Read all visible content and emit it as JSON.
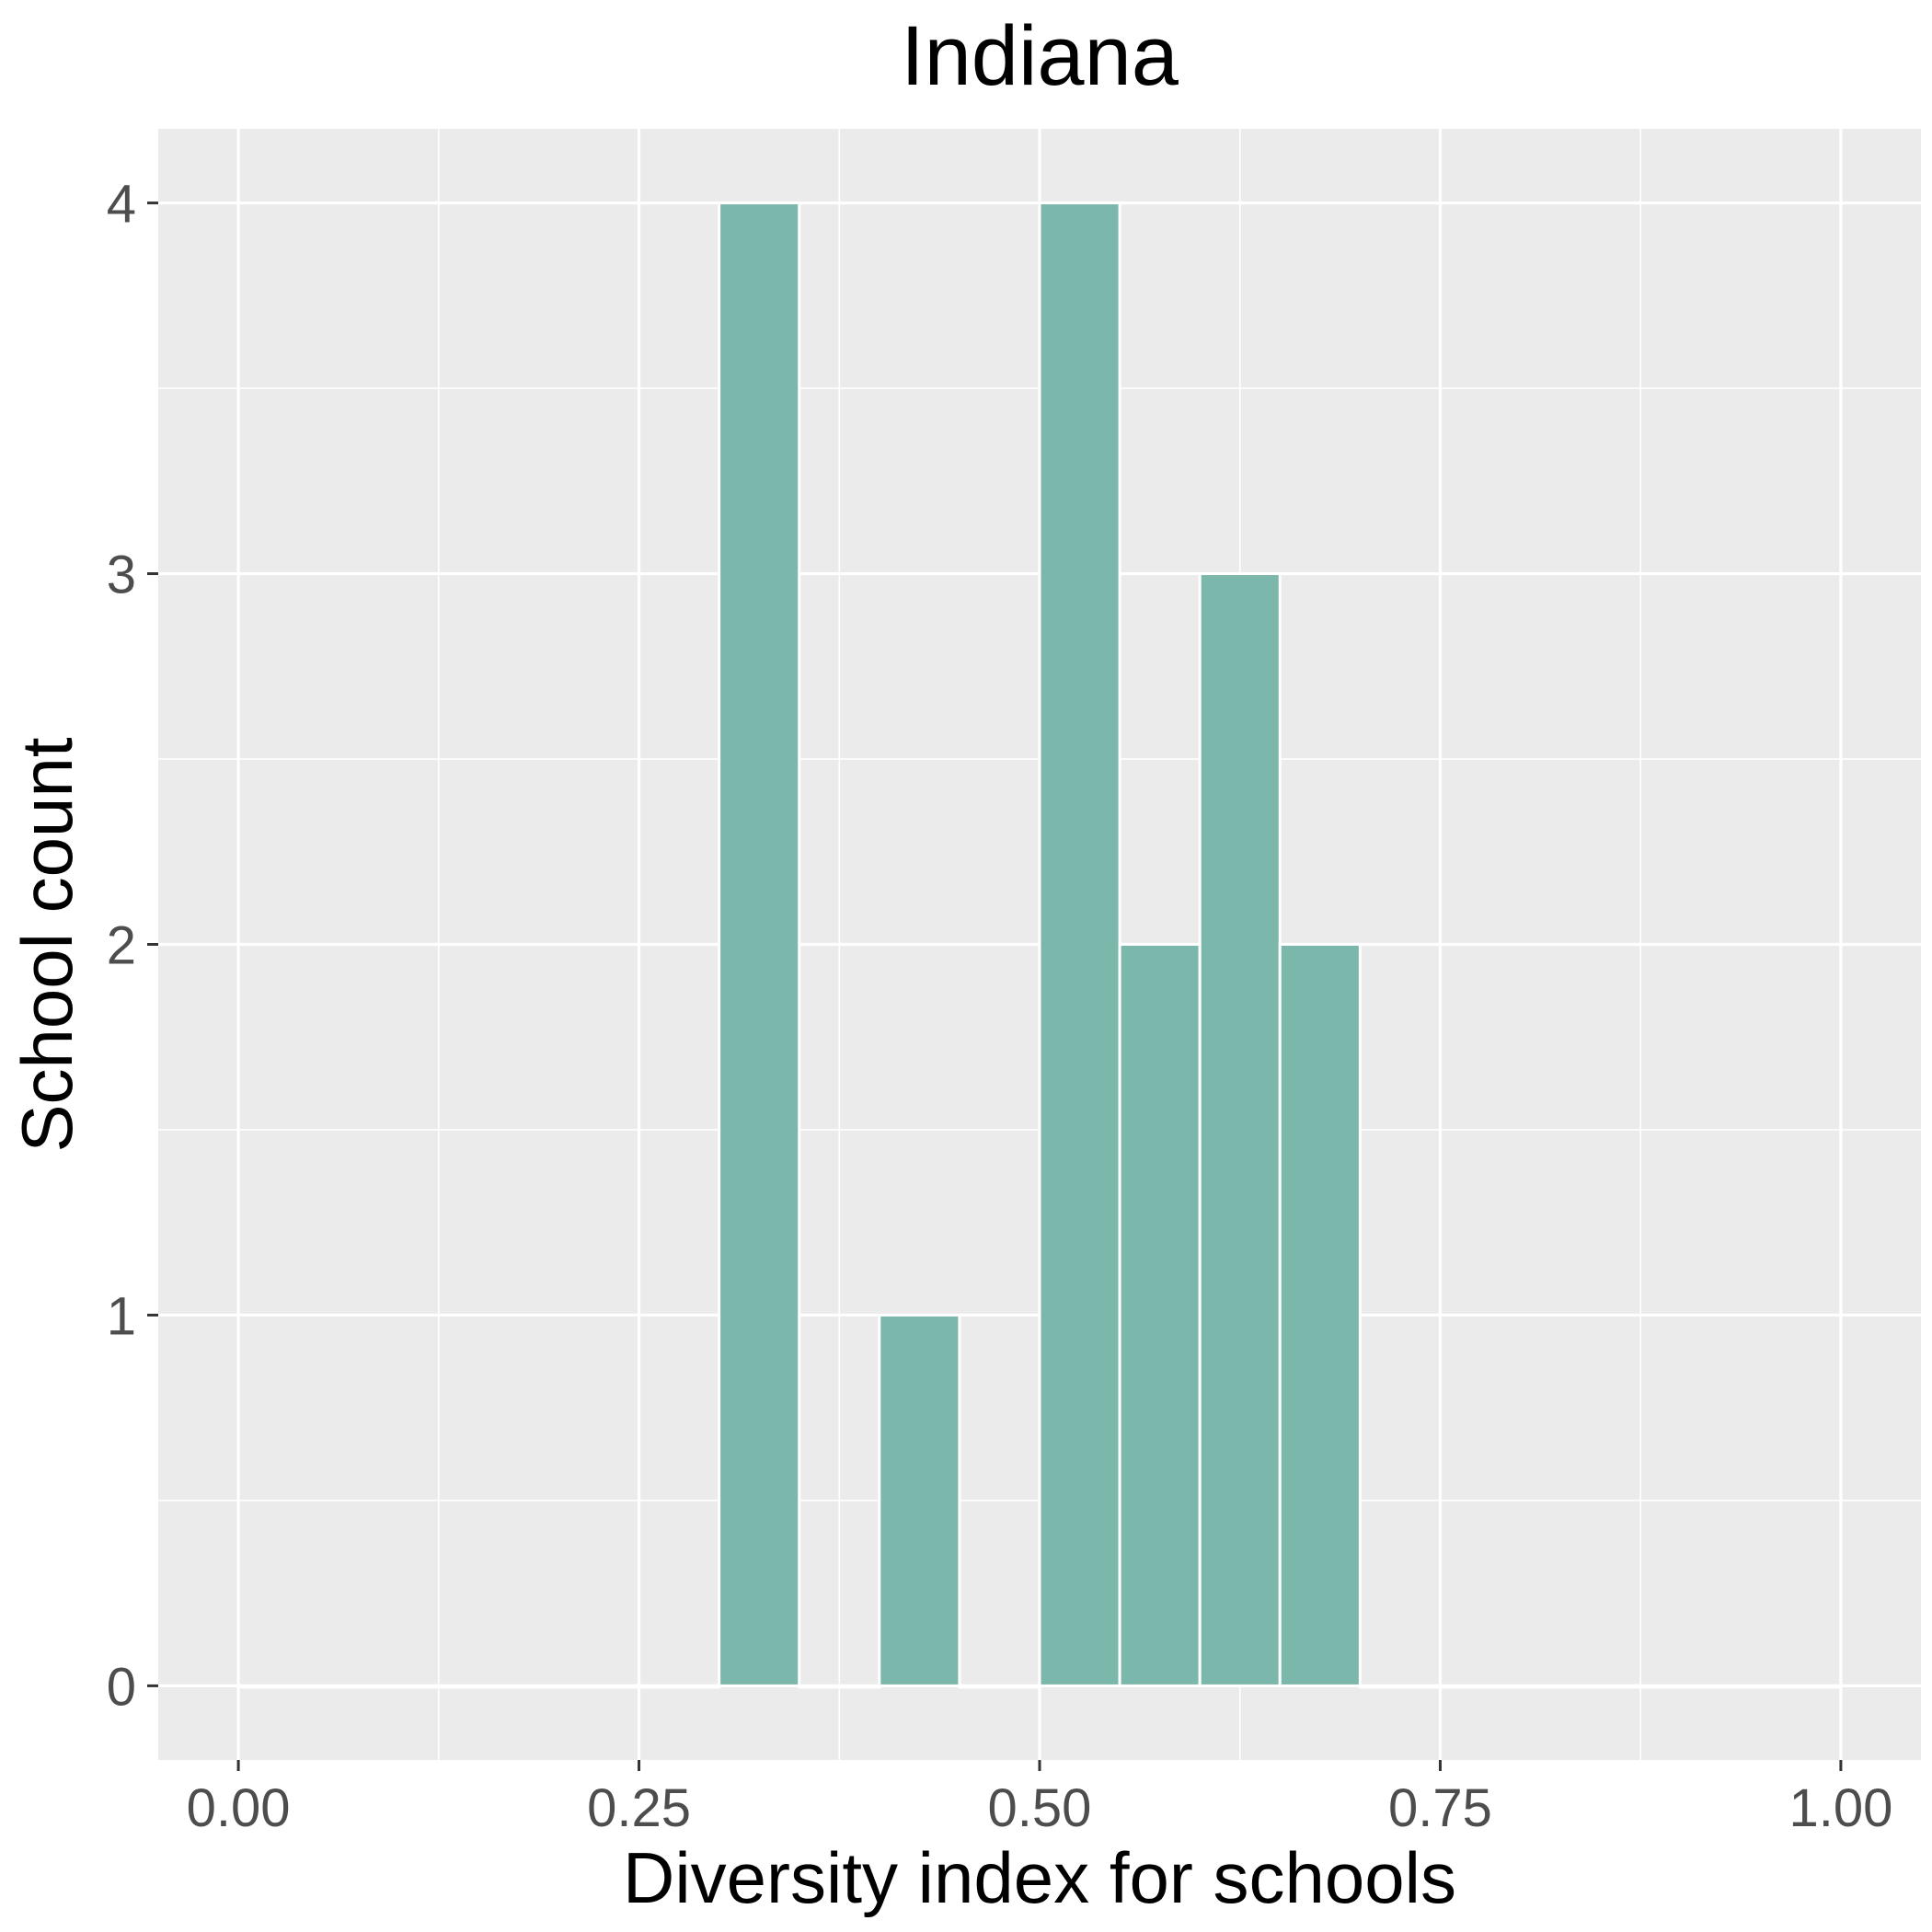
{
  "chart_data": {
    "type": "bar",
    "title": "Indiana",
    "xlabel": "Diversity index for schools",
    "ylabel": "School count",
    "bin_width": 0.05,
    "bins": [
      {
        "x_start": 0.0,
        "x_end": 0.05,
        "count": 0
      },
      {
        "x_start": 0.05,
        "x_end": 0.1,
        "count": 0
      },
      {
        "x_start": 0.1,
        "x_end": 0.15,
        "count": 0
      },
      {
        "x_start": 0.15,
        "x_end": 0.2,
        "count": 0
      },
      {
        "x_start": 0.2,
        "x_end": 0.25,
        "count": 0
      },
      {
        "x_start": 0.25,
        "x_end": 0.3,
        "count": 0
      },
      {
        "x_start": 0.3,
        "x_end": 0.35,
        "count": 4
      },
      {
        "x_start": 0.35,
        "x_end": 0.4,
        "count": 0
      },
      {
        "x_start": 0.4,
        "x_end": 0.45,
        "count": 1
      },
      {
        "x_start": 0.45,
        "x_end": 0.5,
        "count": 0
      },
      {
        "x_start": 0.5,
        "x_end": 0.55,
        "count": 4
      },
      {
        "x_start": 0.55,
        "x_end": 0.6,
        "count": 2
      },
      {
        "x_start": 0.6,
        "x_end": 0.65,
        "count": 3
      },
      {
        "x_start": 0.65,
        "x_end": 0.7,
        "count": 2
      },
      {
        "x_start": 0.7,
        "x_end": 0.75,
        "count": 0
      },
      {
        "x_start": 0.75,
        "x_end": 0.8,
        "count": 0
      },
      {
        "x_start": 0.8,
        "x_end": 0.85,
        "count": 0
      },
      {
        "x_start": 0.85,
        "x_end": 0.9,
        "count": 0
      },
      {
        "x_start": 0.9,
        "x_end": 0.95,
        "count": 0
      },
      {
        "x_start": 0.95,
        "x_end": 1.0,
        "count": 0
      }
    ],
    "xlim": [
      -0.05,
      1.05
    ],
    "ylim": [
      -0.2,
      4.2
    ],
    "x_ticks": [
      0,
      0.25,
      0.5,
      0.75,
      1
    ],
    "x_tick_labels": [
      "0.00",
      "0.25",
      "0.50",
      "0.75",
      "1.00"
    ],
    "y_ticks": [
      0,
      1,
      2,
      3,
      4
    ],
    "y_tick_labels": [
      "0",
      "1",
      "2",
      "3",
      "4"
    ],
    "grid": true,
    "legend": "none",
    "colors": {
      "bar_fill": "#7bb8ab",
      "panel_background": "#ebebeb",
      "grid": "#ffffff"
    }
  }
}
